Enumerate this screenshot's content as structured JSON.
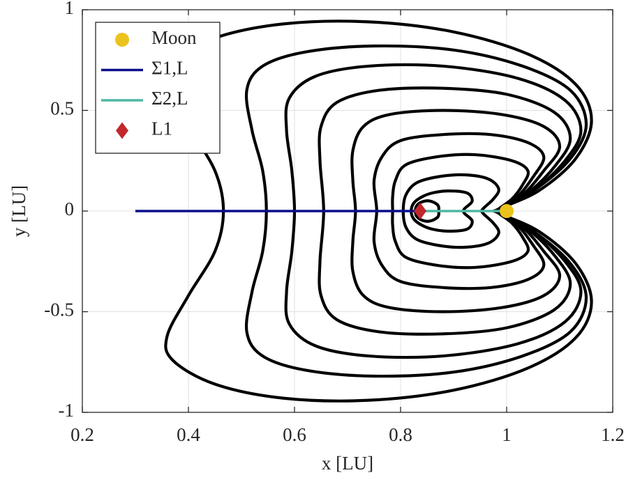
{
  "chart_data": {
    "type": "line",
    "xlabel": "x [LU]",
    "ylabel": "y [LU]",
    "xlim": [
      0.2,
      1.2
    ],
    "ylim": [
      -1,
      1
    ],
    "xticks": [
      0.2,
      0.4,
      0.6,
      0.8,
      1,
      1.2
    ],
    "yticks": [
      -1,
      -0.5,
      0,
      0.5,
      1
    ],
    "grid": true,
    "legend": "northwest",
    "series": [
      {
        "color": "#000000",
        "closed": true,
        "x": [
          0.985,
          1.06,
          1.13,
          1.16,
          1.13,
          1.04,
          0.9,
          0.74,
          0.58,
          0.45,
          0.37,
          0.36,
          0.4,
          0.45,
          0.466,
          0.45,
          0.4,
          0.36,
          0.37,
          0.45,
          0.58,
          0.74,
          0.9,
          1.04,
          1.13,
          1.16,
          1.13,
          1.06,
          0.985
        ],
        "values": [
          0.01,
          0.1,
          0.26,
          0.45,
          0.63,
          0.78,
          0.89,
          0.94,
          0.93,
          0.86,
          0.74,
          0.62,
          0.42,
          0.2,
          0,
          -0.2,
          -0.42,
          -0.62,
          -0.74,
          -0.86,
          -0.93,
          -0.94,
          -0.89,
          -0.78,
          -0.63,
          -0.45,
          -0.26,
          -0.1,
          -0.01
        ]
      },
      {
        "color": "#000000",
        "closed": true,
        "x": [
          0.985,
          1.05,
          1.12,
          1.15,
          1.12,
          1.03,
          0.9,
          0.75,
          0.62,
          0.54,
          0.51,
          0.52,
          0.54,
          0.547,
          0.54,
          0.52,
          0.51,
          0.54,
          0.62,
          0.75,
          0.9,
          1.03,
          1.12,
          1.15,
          1.12,
          1.05,
          0.985
        ],
        "values": [
          0.01,
          0.1,
          0.26,
          0.43,
          0.6,
          0.72,
          0.8,
          0.82,
          0.79,
          0.72,
          0.6,
          0.4,
          0.2,
          0,
          -0.2,
          -0.4,
          -0.6,
          -0.72,
          -0.79,
          -0.82,
          -0.8,
          -0.72,
          -0.6,
          -0.43,
          -0.26,
          -0.1,
          -0.01
        ]
      },
      {
        "color": "#000000",
        "closed": true,
        "x": [
          0.985,
          1.05,
          1.11,
          1.14,
          1.11,
          1.02,
          0.88,
          0.74,
          0.64,
          0.59,
          0.585,
          0.595,
          0.6,
          0.595,
          0.585,
          0.59,
          0.64,
          0.74,
          0.88,
          1.02,
          1.11,
          1.14,
          1.11,
          1.05,
          0.985
        ],
        "values": [
          0.01,
          0.1,
          0.25,
          0.4,
          0.55,
          0.66,
          0.72,
          0.72,
          0.67,
          0.56,
          0.4,
          0.2,
          0,
          -0.2,
          -0.4,
          -0.56,
          -0.67,
          -0.72,
          -0.72,
          -0.66,
          -0.55,
          -0.4,
          -0.25,
          -0.1,
          -0.01
        ]
      },
      {
        "color": "#000000",
        "closed": true,
        "x": [
          0.985,
          1.04,
          1.09,
          1.12,
          1.09,
          1.0,
          0.88,
          0.76,
          0.68,
          0.65,
          0.648,
          0.655,
          0.648,
          0.65,
          0.68,
          0.76,
          0.88,
          1.0,
          1.09,
          1.12,
          1.09,
          1.04,
          0.985
        ],
        "values": [
          0.01,
          0.09,
          0.22,
          0.36,
          0.49,
          0.58,
          0.61,
          0.6,
          0.54,
          0.42,
          0.25,
          0,
          -0.25,
          -0.42,
          -0.54,
          -0.6,
          -0.61,
          -0.58,
          -0.49,
          -0.36,
          -0.22,
          -0.09,
          -0.01
        ]
      },
      {
        "color": "#000000",
        "closed": true,
        "x": [
          0.985,
          1.03,
          1.07,
          1.1,
          1.07,
          0.99,
          0.88,
          0.78,
          0.73,
          0.71,
          0.71,
          0.715,
          0.71,
          0.71,
          0.73,
          0.78,
          0.88,
          0.99,
          1.07,
          1.1,
          1.07,
          1.03,
          0.985
        ],
        "values": [
          0.01,
          0.08,
          0.2,
          0.32,
          0.42,
          0.48,
          0.5,
          0.48,
          0.42,
          0.3,
          0.15,
          0,
          -0.15,
          -0.3,
          -0.42,
          -0.48,
          -0.5,
          -0.48,
          -0.42,
          -0.32,
          -0.2,
          -0.08,
          -0.01
        ]
      },
      {
        "color": "#000000",
        "closed": true,
        "x": [
          0.985,
          1.02,
          1.05,
          1.07,
          1.04,
          0.97,
          0.88,
          0.8,
          0.765,
          0.75,
          0.755,
          0.75,
          0.765,
          0.8,
          0.88,
          0.97,
          1.04,
          1.07,
          1.05,
          1.02,
          0.985
        ],
        "values": [
          0.01,
          0.07,
          0.17,
          0.27,
          0.34,
          0.38,
          0.38,
          0.35,
          0.27,
          0.15,
          0,
          -0.15,
          -0.27,
          -0.35,
          -0.38,
          -0.38,
          -0.34,
          -0.27,
          -0.17,
          -0.07,
          -0.01
        ]
      },
      {
        "color": "#000000",
        "closed": true,
        "x": [
          0.985,
          1.01,
          1.03,
          1.04,
          1.01,
          0.94,
          0.87,
          0.81,
          0.79,
          0.785,
          0.785,
          0.785,
          0.79,
          0.81,
          0.87,
          0.94,
          1.01,
          1.04,
          1.03,
          1.01,
          0.985
        ],
        "values": [
          0.01,
          0.06,
          0.13,
          0.2,
          0.25,
          0.28,
          0.27,
          0.23,
          0.15,
          0.07,
          0,
          -0.07,
          -0.15,
          -0.23,
          -0.27,
          -0.28,
          -0.25,
          -0.2,
          -0.13,
          -0.06,
          -0.01
        ]
      },
      {
        "color": "#000000",
        "closed": true,
        "x": [
          0.955,
          0.975,
          0.985,
          0.965,
          0.92,
          0.87,
          0.83,
          0.81,
          0.805,
          0.81,
          0.83,
          0.87,
          0.92,
          0.965,
          0.985,
          0.975,
          0.955
        ],
        "values": [
          0.01,
          0.06,
          0.11,
          0.16,
          0.18,
          0.17,
          0.14,
          0.08,
          0,
          -0.08,
          -0.14,
          -0.17,
          -0.18,
          -0.16,
          -0.11,
          -0.06,
          -0.01
        ]
      },
      {
        "color": "#000000",
        "closed": true,
        "x": [
          0.92,
          0.935,
          0.925,
          0.89,
          0.86,
          0.84,
          0.825,
          0.82,
          0.825,
          0.84,
          0.86,
          0.89,
          0.925,
          0.935,
          0.92
        ],
        "values": [
          0.01,
          0.05,
          0.09,
          0.1,
          0.09,
          0.07,
          0.04,
          0,
          -0.04,
          -0.07,
          -0.09,
          -0.1,
          -0.09,
          -0.05,
          -0.01
        ]
      },
      {
        "color": "#000000",
        "closed": true,
        "x": [
          0.872,
          0.87,
          0.855,
          0.84,
          0.83,
          0.828,
          0.83,
          0.84,
          0.855,
          0.87
        ],
        "values": [
          0,
          0.03,
          0.05,
          0.045,
          0.025,
          0,
          -0.025,
          -0.045,
          -0.05,
          -0.03
        ]
      },
      {
        "name": "Σ1,L",
        "color": "#0b0f8c",
        "x": [
          0.3,
          0.837
        ],
        "values": [
          0,
          0
        ]
      },
      {
        "name": "Σ2,L",
        "color": "#4fb8a3",
        "x": [
          0.837,
          1
        ],
        "values": [
          0,
          0
        ]
      },
      {
        "name": "Moon",
        "color": "#ecc31c",
        "marker": "circle",
        "x": [
          1
        ],
        "values": [
          0
        ]
      },
      {
        "name": "L1",
        "color": "#c1272d",
        "marker": "diamond",
        "x": [
          0.837
        ],
        "values": [
          0
        ]
      }
    ]
  }
}
